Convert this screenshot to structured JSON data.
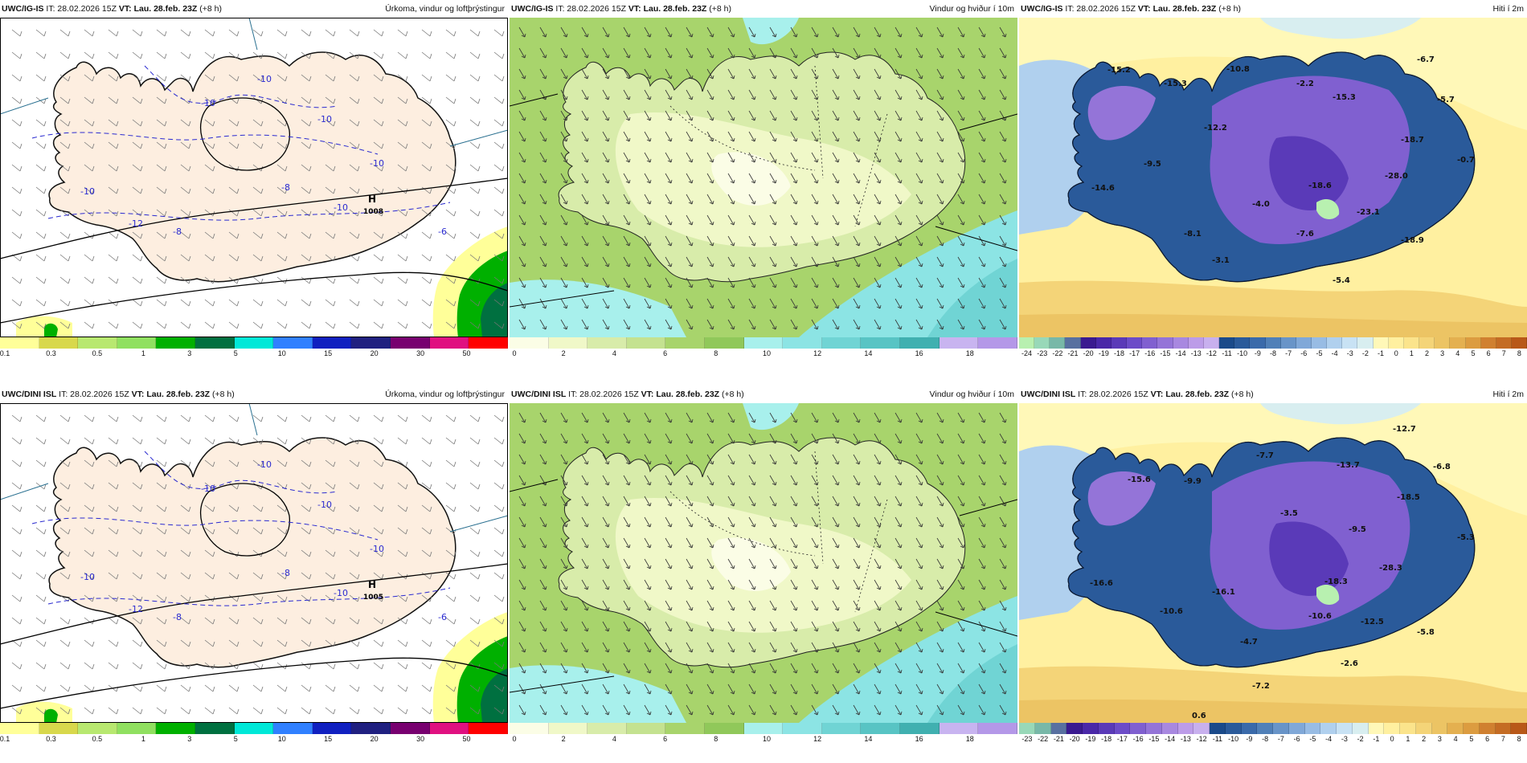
{
  "panels": [
    {
      "model": "UWC/IG-IS",
      "it_label": "IT:",
      "it": "28.02.2026 15Z",
      "vt_label": "VT:",
      "vt": "Lau. 28.feb. 23Z",
      "lead": "(+8 h)",
      "product": "Úrkoma, vindur og loftþrýstingur",
      "type": "precip",
      "colorbar": [
        "#ffff99",
        "#d8d84c",
        "#b8e870",
        "#90e060",
        "#00b000",
        "#007040",
        "#00e8d8",
        "#3080ff",
        "#1020c0",
        "#202080",
        "#780070",
        "#e01080",
        "#ff0000"
      ],
      "ticks": [
        "0.1",
        "0.3",
        "0.5",
        "1",
        "3",
        "5",
        "10",
        "15",
        "20",
        "30",
        "50"
      ],
      "pressure_center": {
        "letter": "H",
        "value": "1008"
      },
      "temp_labels": [
        "-10",
        "-10",
        "-10",
        "-10",
        "-10",
        "-8",
        "-8",
        "-6",
        "-12",
        "-10"
      ]
    },
    {
      "model": "UWC/IG-IS",
      "it_label": "IT:",
      "it": "28.02.2026 15Z",
      "vt_label": "VT:",
      "vt": "Lau. 28.feb. 23Z",
      "lead": "(+8 h)",
      "product": "Vindur og hviður í 10m",
      "type": "wind",
      "colorbar": [
        "#fbfde6",
        "#f0f8c8",
        "#d8ecaa",
        "#c4e290",
        "#a8d46c",
        "#90c85a",
        "#a8f0ec",
        "#8ce4e4",
        "#70d4d4",
        "#58c4c4",
        "#40b0b0",
        "#c8b4f0",
        "#b498e8"
      ],
      "ticks": [
        "0",
        "2",
        "4",
        "6",
        "8",
        "10",
        "12",
        "14",
        "16",
        "18"
      ]
    },
    {
      "model": "UWC/IG-IS",
      "it_label": "IT:",
      "it": "28.02.2026 15Z",
      "vt_label": "VT:",
      "vt": "Lau. 28.feb. 23Z",
      "lead": "(+8 h)",
      "product": "Hiti í 2m",
      "type": "temp",
      "colorbar": [
        "#b8f0b0",
        "#98d8b8",
        "#78b8a8",
        "#5870a0",
        "#3a1a90",
        "#4a28a8",
        "#5a3ab8",
        "#6c4cc8",
        "#8060d0",
        "#9474d8",
        "#a888e0",
        "#bc9ce8",
        "#c8b0ee",
        "#1a4a8a",
        "#2a5a9a",
        "#3a6aaa",
        "#5080b8",
        "#6894c8",
        "#80a8d8",
        "#98bce4",
        "#b0d0ee",
        "#c8e2f4",
        "#d8eef0",
        "#fff8b8",
        "#fff0a0",
        "#fbe48c",
        "#f4d478",
        "#ecc464",
        "#e4b050",
        "#dc9c40",
        "#d08030",
        "#c46c24",
        "#b85818"
      ],
      "ticks": [
        "-24",
        "-23",
        "-22",
        "-21",
        "-20",
        "-19",
        "-18",
        "-17",
        "-16",
        "-15",
        "-14",
        "-13",
        "-12",
        "-11",
        "-10",
        "-9",
        "-8",
        "-7",
        "-6",
        "-5",
        "-4",
        "-3",
        "-2",
        "-1",
        "0",
        "1",
        "2",
        "3",
        "4",
        "5",
        "6",
        "7",
        "8"
      ],
      "map_labels": [
        "-15.2",
        "-15.3",
        "-10.8",
        "-2.2",
        "-6.7",
        "-15.3",
        "-5.7",
        "-12.2",
        "-18.7",
        "-9.5",
        "-0.7",
        "-28.0",
        "-14.6",
        "-18.6",
        "-4.0",
        "-23.1",
        "-8.1",
        "-7.6",
        "-18.9",
        "-3.1",
        "-5.4"
      ]
    },
    {
      "model": "UWC/DINI ISL",
      "it_label": "IT:",
      "it": "28.02.2026 15Z",
      "vt_label": "VT:",
      "vt": "Lau. 28.feb. 23Z",
      "lead": "(+8 h)",
      "product": "Úrkoma, vindur og loftþrýstingur",
      "type": "precip",
      "colorbar": [
        "#ffff99",
        "#d8d84c",
        "#b8e870",
        "#90e060",
        "#00b000",
        "#007040",
        "#00e8d8",
        "#3080ff",
        "#1020c0",
        "#202080",
        "#780070",
        "#e01080",
        "#ff0000"
      ],
      "ticks": [
        "0.1",
        "0.3",
        "0.5",
        "1",
        "3",
        "5",
        "10",
        "15",
        "20",
        "30",
        "50"
      ],
      "pressure_center": {
        "letter": "H",
        "value": "1005"
      },
      "temp_labels": [
        "-10",
        "-10",
        "-10",
        "-10",
        "-10",
        "-8",
        "-8",
        "-6",
        "-12",
        "-10"
      ]
    },
    {
      "model": "UWC/DINI ISL",
      "it_label": "IT:",
      "it": "28.02.2026 15Z",
      "vt_label": "VT:",
      "vt": "Lau. 28.feb. 23Z",
      "lead": "(+8 h)",
      "product": "Vindur og hviður í 10m",
      "type": "wind",
      "colorbar": [
        "#fbfde6",
        "#f0f8c8",
        "#d8ecaa",
        "#c4e290",
        "#a8d46c",
        "#90c85a",
        "#a8f0ec",
        "#8ce4e4",
        "#70d4d4",
        "#58c4c4",
        "#40b0b0",
        "#c8b4f0",
        "#b498e8"
      ],
      "ticks": [
        "0",
        "2",
        "4",
        "6",
        "8",
        "10",
        "12",
        "14",
        "16",
        "18"
      ]
    },
    {
      "model": "UWC/DINI ISL",
      "it_label": "IT:",
      "it": "28.02.2026 15Z",
      "vt_label": "VT:",
      "vt": "Lau. 28.feb. 23Z",
      "lead": "(+8 h)",
      "product": "Hiti í 2m",
      "type": "temp",
      "colorbar": [
        "#98d8b8",
        "#78b8a8",
        "#5870a0",
        "#3a1a90",
        "#4a28a8",
        "#5a3ab8",
        "#6c4cc8",
        "#8060d0",
        "#9474d8",
        "#a888e0",
        "#bc9ce8",
        "#c8b0ee",
        "#1a4a8a",
        "#2a5a9a",
        "#3a6aaa",
        "#5080b8",
        "#6894c8",
        "#80a8d8",
        "#98bce4",
        "#b0d0ee",
        "#c8e2f4",
        "#d8eef0",
        "#fff8b8",
        "#fff0a0",
        "#fbe48c",
        "#f4d478",
        "#ecc464",
        "#e4b050",
        "#dc9c40",
        "#d08030",
        "#c46c24",
        "#b85818"
      ],
      "ticks": [
        "-23",
        "-22",
        "-21",
        "-20",
        "-19",
        "-18",
        "-17",
        "-16",
        "-15",
        "-14",
        "-13",
        "-12",
        "-11",
        "-10",
        "-9",
        "-8",
        "-7",
        "-6",
        "-5",
        "-4",
        "-3",
        "-2",
        "-1",
        "0",
        "1",
        "2",
        "3",
        "4",
        "5",
        "6",
        "7",
        "8"
      ],
      "map_labels": [
        "-12.7",
        "-7.7",
        "-13.7",
        "-6.8",
        "-15.6",
        "-9.9",
        "-18.5",
        "-3.5",
        "-9.5",
        "-5.3",
        "-28.3",
        "-16.6",
        "-18.3",
        "-16.1",
        "-10.6",
        "-10.6",
        "-12.5",
        "-5.8",
        "-4.7",
        "-2.6",
        "-7.2",
        "0.6"
      ]
    }
  ]
}
